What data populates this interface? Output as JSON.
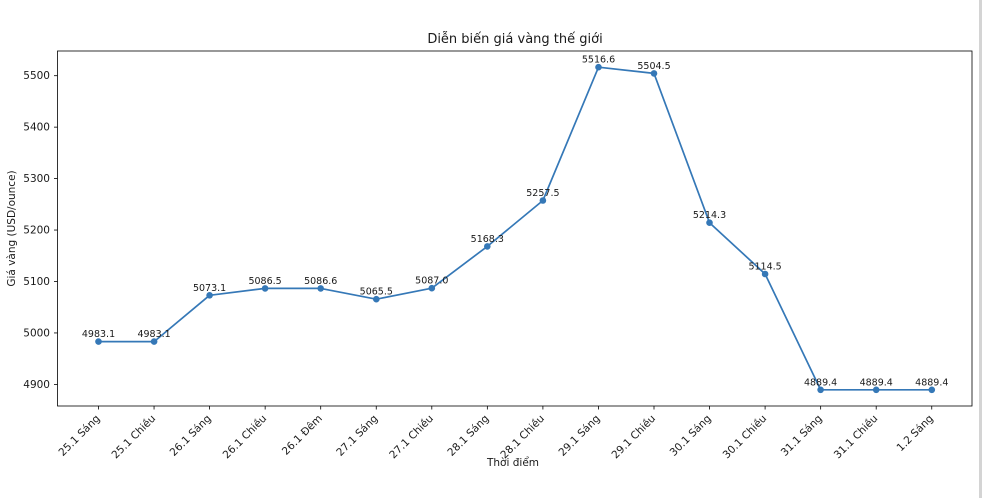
{
  "figure": {
    "title": "Diễn biến giá vàng thế giới",
    "xlabel": "Thời điểm",
    "ylabel": "Giá vàng (USD/ounce)"
  },
  "colors": {
    "line": "#3578b7",
    "marker": "#3578b7",
    "text": "#1a1a1a",
    "spine": "#000000",
    "background": "#ffffff",
    "window_edge_strip": "#d4d4d4"
  },
  "chart_data": {
    "type": "line",
    "title": "Diễn biến giá vàng thế giới",
    "xlabel": "Thời điểm",
    "ylabel": "Giá vàng (USD/ounce)",
    "categories": [
      "25.1 Sáng",
      "25.1 Chiều",
      "26.1 Sáng",
      "26.1 Chiều",
      "26.1 Đêm",
      "27.1 Sáng",
      "27.1 Chiều",
      "28.1 Sáng",
      "28.1 Chiều",
      "29.1 Sáng",
      "29.1 Chiều",
      "30.1 Sáng",
      "30.1 Chiều",
      "31.1 Sáng",
      "31.1 Chiều",
      "1.2 Sáng"
    ],
    "series": [
      {
        "values": [
          4983.1,
          4983.1,
          5073.1,
          5086.5,
          5086.6,
          5065.5,
          5087.0,
          5168.3,
          5257.5,
          5516.6,
          5504.5,
          5214.3,
          5114.5,
          4889.4,
          4889.4,
          4889.4
        ],
        "point_labels": [
          "4983.1",
          "4983.1",
          "5073.1",
          "5086.5",
          "5086.6",
          "5065.5",
          "5087.0",
          "5168.3",
          "5257.5",
          "5516.6",
          "5504.5",
          "5214.3",
          "5114.5",
          "4889.4",
          "4889.4",
          "4889.4"
        ]
      }
    ],
    "yticks": [
      4900,
      5000,
      5100,
      5200,
      5300,
      5400,
      5500
    ],
    "ylim": [
      4858,
      5548
    ],
    "x_tick_rotation": 45,
    "grid": false,
    "marker": "circle"
  }
}
